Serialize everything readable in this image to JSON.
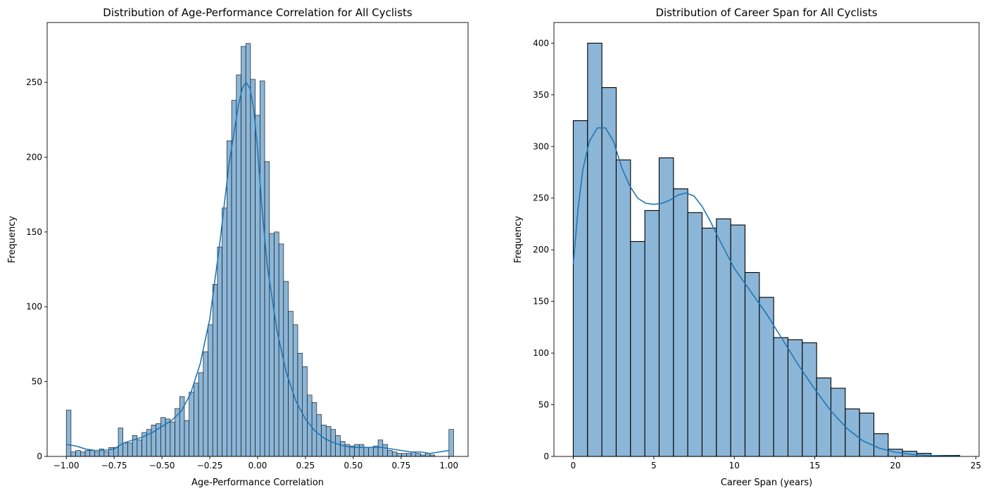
{
  "colors": {
    "bar_fill": "#8cb6d7",
    "bar_edge": "#000000",
    "kde": "#1f77b4",
    "axis": "#000000"
  },
  "chart_data": [
    {
      "type": "bar",
      "kind": "histogram",
      "title": "Distribution of Age-Performance Correlation for All Cyclists",
      "xlabel": "Age-Performance Correlation",
      "ylabel": "Frequency",
      "xlim": [
        -1.1,
        1.1
      ],
      "ylim": [
        0,
        290
      ],
      "x_ticks": [
        -1.0,
        -0.75,
        -0.5,
        -0.25,
        0.0,
        0.25,
        0.5,
        0.75,
        1.0
      ],
      "x_tick_labels": [
        "−1.00",
        "−0.75",
        "−0.50",
        "−0.25",
        "0.00",
        "0.25",
        "0.50",
        "0.75",
        "1.00"
      ],
      "y_ticks": [
        0,
        50,
        100,
        150,
        200,
        250
      ],
      "y_tick_labels": [
        "0",
        "50",
        "100",
        "150",
        "200",
        "250"
      ],
      "bin_start": -1.0,
      "bin_width": 0.02469,
      "values": [
        31,
        3,
        4,
        3,
        4,
        4,
        3,
        5,
        3,
        6,
        6,
        19,
        9,
        9,
        14,
        11,
        16,
        18,
        21,
        22,
        26,
        25,
        23,
        32,
        40,
        24,
        43,
        49,
        56,
        70,
        88,
        115,
        140,
        166,
        211,
        238,
        255,
        274,
        276,
        252,
        228,
        251,
        197,
        149,
        150,
        142,
        117,
        97,
        88,
        69,
        60,
        41,
        36,
        28,
        21,
        20,
        18,
        14,
        10,
        8,
        7,
        8,
        8,
        6,
        6,
        7,
        11,
        8,
        4,
        3,
        2,
        2,
        2,
        3,
        2,
        1,
        2,
        1,
        0,
        0,
        0,
        18
      ],
      "kde": {
        "x": [
          -1.0,
          -0.95,
          -0.9,
          -0.85,
          -0.8,
          -0.75,
          -0.7,
          -0.65,
          -0.6,
          -0.55,
          -0.5,
          -0.45,
          -0.4,
          -0.35,
          -0.3,
          -0.25,
          -0.2,
          -0.15,
          -0.1,
          -0.08,
          -0.06,
          -0.04,
          -0.02,
          0.0,
          0.02,
          0.05,
          0.1,
          0.15,
          0.2,
          0.25,
          0.3,
          0.35,
          0.4,
          0.45,
          0.5,
          0.55,
          0.6,
          0.65,
          0.7,
          0.75,
          0.8,
          0.85,
          0.9,
          0.95,
          1.0
        ],
        "y": [
          8,
          7,
          5,
          4,
          4,
          5,
          9,
          11,
          13,
          16,
          20,
          24,
          30,
          42,
          62,
          92,
          140,
          195,
          235,
          246,
          250,
          246,
          232,
          205,
          170,
          128,
          85,
          56,
          37,
          25,
          17,
          12,
          9,
          7,
          6,
          6,
          6,
          6,
          5,
          4,
          3,
          3,
          2,
          3,
          4
        ]
      }
    },
    {
      "type": "bar",
      "kind": "histogram",
      "title": "Distribution of Career Span for All Cyclists",
      "xlabel": "Career Span (years)",
      "ylabel": "Frequency",
      "xlim": [
        -1.2,
        25.2
      ],
      "ylim": [
        0,
        420
      ],
      "x_ticks": [
        0,
        5,
        10,
        15,
        20,
        25
      ],
      "x_tick_labels": [
        "0",
        "5",
        "10",
        "15",
        "20",
        "25"
      ],
      "y_ticks": [
        0,
        50,
        100,
        150,
        200,
        250,
        300,
        350,
        400
      ],
      "y_tick_labels": [
        "0",
        "50",
        "100",
        "150",
        "200",
        "250",
        "300",
        "350",
        "400"
      ],
      "bin_start": 0,
      "bin_width": 0.8889,
      "values": [
        325,
        400,
        357,
        287,
        208,
        238,
        289,
        259,
        236,
        221,
        230,
        224,
        178,
        154,
        115,
        113,
        110,
        76,
        66,
        46,
        42,
        22,
        7,
        5,
        3,
        1,
        1
      ],
      "kde": {
        "x": [
          0,
          0.3,
          0.6,
          1.0,
          1.5,
          2.0,
          2.5,
          3.0,
          3.5,
          4.0,
          4.5,
          5.0,
          5.5,
          6.0,
          6.5,
          7.0,
          7.5,
          8.0,
          8.5,
          9.0,
          10.0,
          11.0,
          12.0,
          13.0,
          14.0,
          15.0,
          16.0,
          17.0,
          18.0,
          19.0,
          20.0,
          21.0,
          22.0,
          23.0,
          24.0
        ],
        "y": [
          186,
          240,
          278,
          305,
          318,
          318,
          305,
          280,
          262,
          250,
          245,
          244,
          245,
          248,
          253,
          255,
          252,
          242,
          228,
          212,
          182,
          160,
          138,
          113,
          88,
          65,
          44,
          27,
          15,
          8,
          4,
          2,
          1,
          0.5,
          0.3
        ]
      }
    }
  ]
}
